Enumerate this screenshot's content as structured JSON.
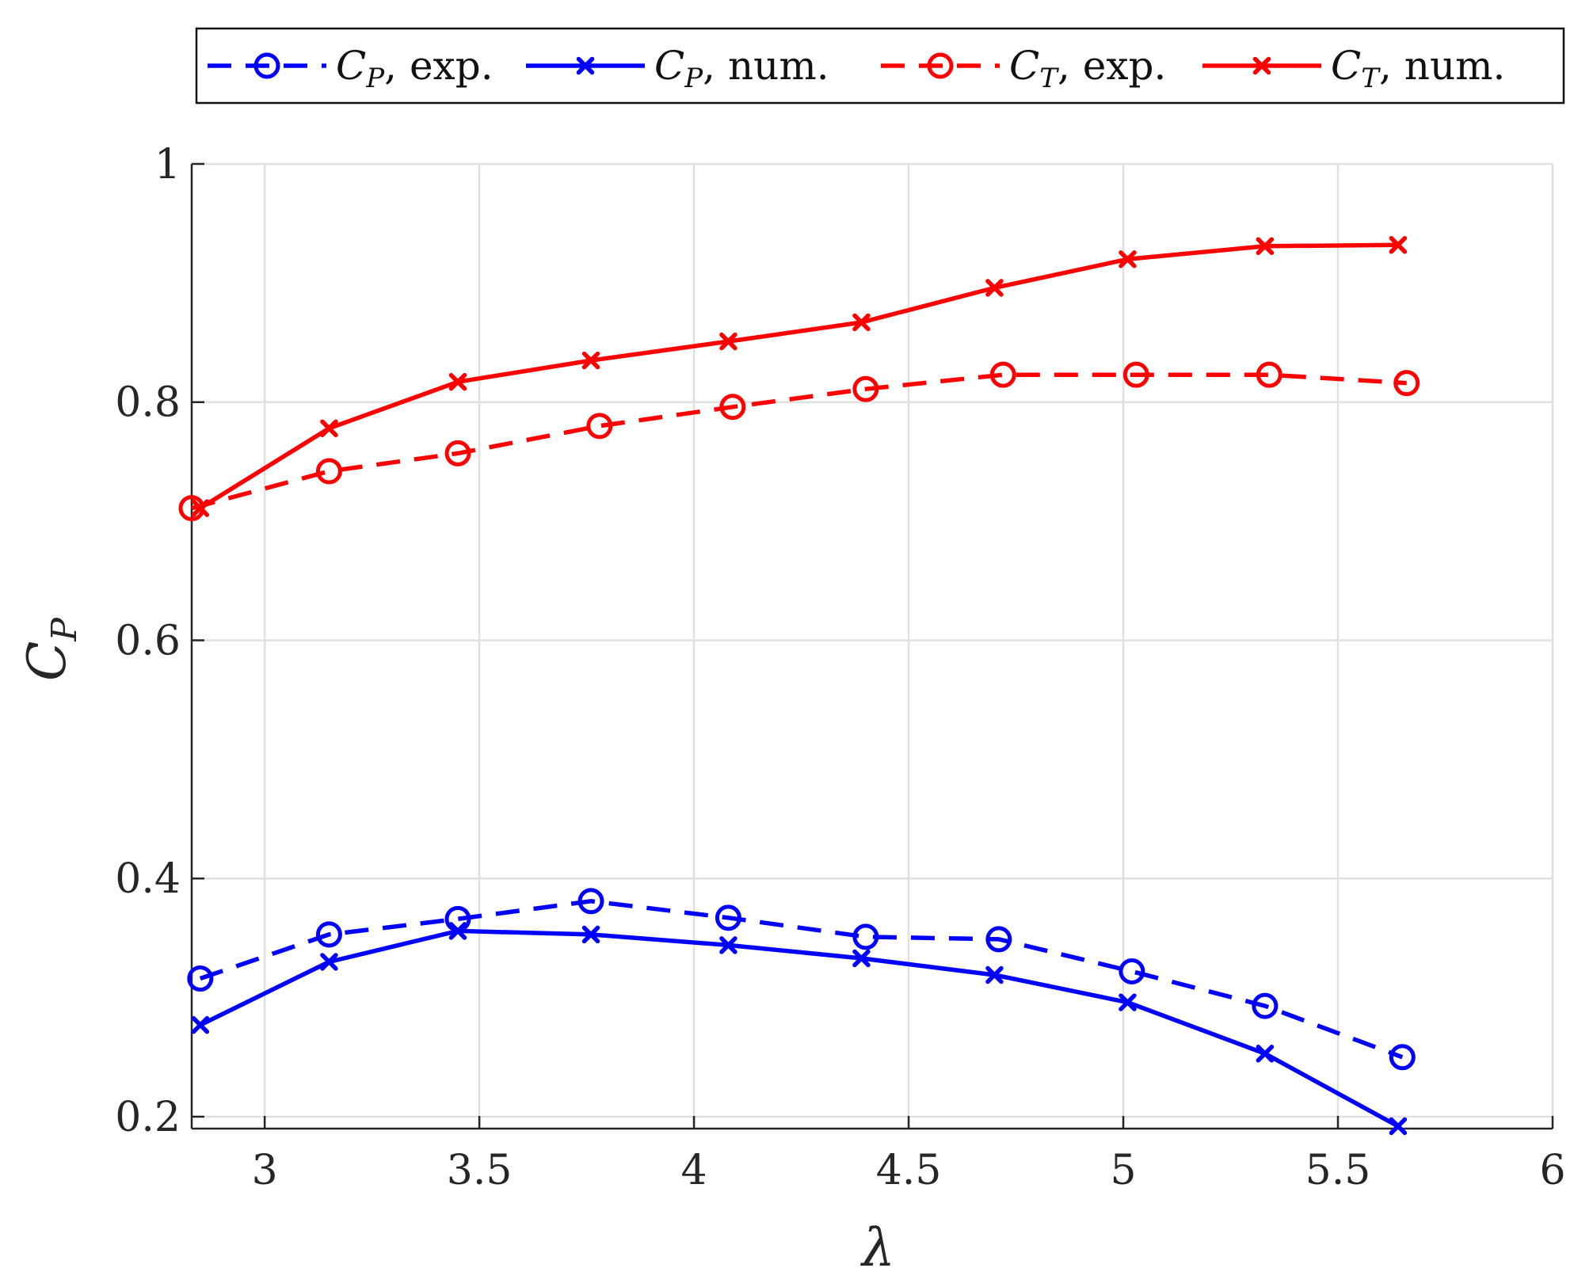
{
  "chart_data": {
    "type": "line",
    "title": "",
    "xlabel": "λ",
    "ylabel": {
      "main": "C",
      "sub": "P"
    },
    "xlim": [
      2.83,
      6.0
    ],
    "ylim": [
      0.19,
      1.0
    ],
    "grid": true,
    "legend_position": "top",
    "xticks": [
      3,
      3.5,
      4,
      4.5,
      5,
      5.5,
      6
    ],
    "xtick_labels": [
      "3",
      "3.5",
      "4",
      "4.5",
      "5",
      "5.5",
      "6"
    ],
    "yticks": [
      0.2,
      0.4,
      0.6,
      0.8,
      1.0
    ],
    "ytick_labels": [
      "0.2",
      "0.4",
      "0.6",
      "0.8",
      "1"
    ],
    "colors": {
      "blue": "#0000ff",
      "red": "#ff0000",
      "grid": "#e0e0e0",
      "axis": "#262626"
    },
    "series": [
      {
        "name": "CP-exp",
        "label": {
          "main": "C",
          "sub": "P",
          "rest": ", exp."
        },
        "color": "#0000ff",
        "line": "dashed",
        "marker": "circle",
        "x": [
          2.85,
          3.15,
          3.45,
          3.76,
          4.08,
          4.4,
          4.71,
          5.02,
          5.33,
          5.65
        ],
        "y": [
          0.316,
          0.353,
          0.366,
          0.381,
          0.367,
          0.351,
          0.349,
          0.322,
          0.293,
          0.25
        ]
      },
      {
        "name": "CP-num",
        "label": {
          "main": "C",
          "sub": "P",
          "rest": ", num."
        },
        "color": "#0000ff",
        "line": "solid",
        "marker": "x",
        "x": [
          2.85,
          3.15,
          3.45,
          3.76,
          4.08,
          4.39,
          4.7,
          5.01,
          5.33,
          5.64
        ],
        "y": [
          0.277,
          0.33,
          0.356,
          0.353,
          0.344,
          0.333,
          0.319,
          0.296,
          0.253,
          0.192
        ]
      },
      {
        "name": "CT-exp",
        "label": {
          "main": "C",
          "sub": "T",
          "rest": ", exp."
        },
        "color": "#ff0000",
        "line": "dashed",
        "marker": "circle",
        "x": [
          2.83,
          3.15,
          3.45,
          3.78,
          4.09,
          4.4,
          4.72,
          5.03,
          5.34,
          5.66
        ],
        "y": [
          0.711,
          0.742,
          0.757,
          0.78,
          0.796,
          0.811,
          0.823,
          0.823,
          0.823,
          0.816
        ]
      },
      {
        "name": "CT-num",
        "label": {
          "main": "C",
          "sub": "T",
          "rest": ", num."
        },
        "color": "#ff0000",
        "line": "solid",
        "marker": "x",
        "x": [
          2.85,
          3.15,
          3.45,
          3.76,
          4.08,
          4.39,
          4.7,
          5.01,
          5.33,
          5.64
        ],
        "y": [
          0.711,
          0.778,
          0.817,
          0.835,
          0.851,
          0.867,
          0.896,
          0.92,
          0.931,
          0.932
        ]
      }
    ]
  }
}
